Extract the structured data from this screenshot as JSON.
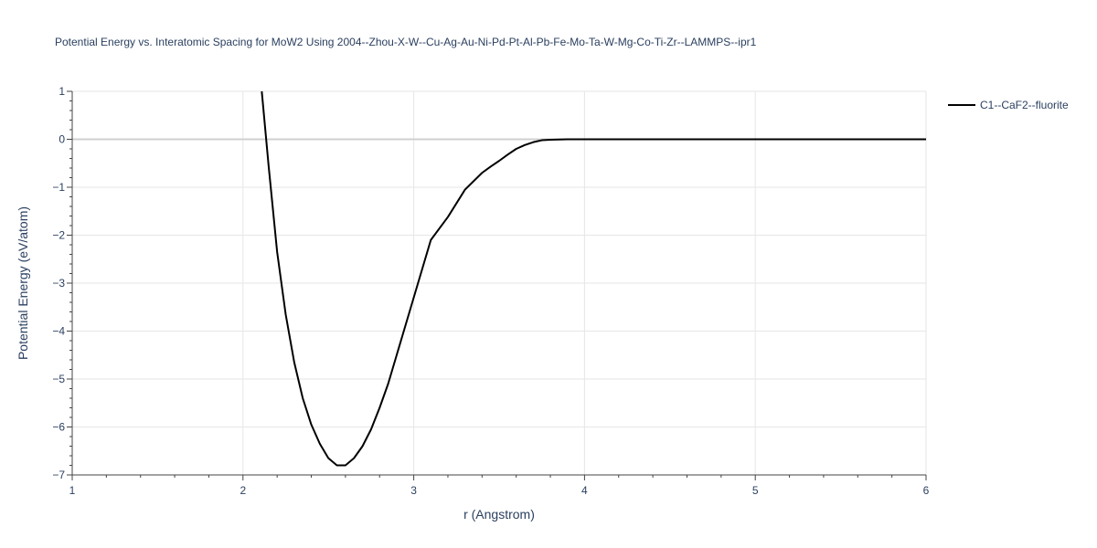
{
  "chart_data": {
    "type": "line",
    "title": "Potential Energy vs. Interatomic Spacing for MoW2 Using 2004--Zhou-X-W--Cu-Ag-Au-Ni-Pd-Pt-Al-Pb-Fe-Mo-Ta-W-Mg-Co-Ti-Zr--LAMMPS--ipr1",
    "xlabel": "r (Angstrom)",
    "ylabel": "Potential Energy (eV/atom)",
    "xlim": [
      1,
      6
    ],
    "ylim": [
      -7,
      1
    ],
    "x_ticks": [
      1,
      2,
      3,
      4,
      5,
      6
    ],
    "x_tick_labels": [
      "1",
      "2",
      "3",
      "4",
      "5",
      "6"
    ],
    "y_ticks": [
      1,
      0,
      -1,
      -2,
      -3,
      -4,
      -5,
      -6,
      -7
    ],
    "y_tick_labels": [
      "1",
      "0",
      "−1",
      "−2",
      "−3",
      "−4",
      "−5",
      "−6",
      "−7"
    ],
    "grid": true,
    "legend_position": "top-right",
    "series": [
      {
        "name": "C1--CaF2--fluorite",
        "color": "#000000",
        "x": [
          2.11,
          2.15,
          2.2,
          2.25,
          2.3,
          2.35,
          2.4,
          2.45,
          2.5,
          2.55,
          2.6,
          2.65,
          2.7,
          2.75,
          2.8,
          2.85,
          2.9,
          2.95,
          3.0,
          3.1,
          3.2,
          3.3,
          3.4,
          3.45,
          3.5,
          3.55,
          3.6,
          3.65,
          3.7,
          3.75,
          3.8,
          3.85,
          3.9,
          4.0,
          4.1,
          4.2,
          4.5,
          5.0,
          5.5,
          6.0
        ],
        "y": [
          1.0,
          -0.55,
          -2.35,
          -3.65,
          -4.65,
          -5.4,
          -5.95,
          -6.35,
          -6.65,
          -6.8,
          -6.8,
          -6.65,
          -6.4,
          -6.05,
          -5.6,
          -5.1,
          -4.5,
          -3.9,
          -3.3,
          -2.1,
          -1.62,
          -1.05,
          -0.7,
          -0.57,
          -0.45,
          -0.32,
          -0.2,
          -0.12,
          -0.06,
          -0.02,
          -0.01,
          -0.005,
          0.0,
          0.0,
          0.0,
          0.0,
          0.0,
          0.0,
          0.0,
          0.0
        ]
      }
    ]
  }
}
